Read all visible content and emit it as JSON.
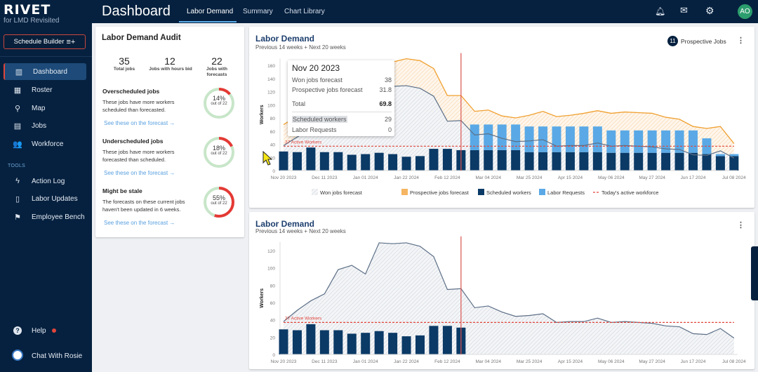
{
  "app": {
    "name": "RIVET",
    "subtitle": "for LMD Revisited",
    "schedule_builder": "Schedule Builder"
  },
  "sidebar": {
    "items": [
      {
        "label": "Dashboard",
        "icon": "bar-chart-icon",
        "active": true
      },
      {
        "label": "Roster",
        "icon": "table-icon"
      },
      {
        "label": "Map",
        "icon": "map-pin-icon"
      },
      {
        "label": "Jobs",
        "icon": "building-icon"
      },
      {
        "label": "Workforce",
        "icon": "people-icon"
      }
    ],
    "tools_label": "TOOLS",
    "tools": [
      {
        "label": "Action Log",
        "icon": "bolt-icon"
      },
      {
        "label": "Labor Updates",
        "icon": "walkie-talkie-icon"
      },
      {
        "label": "Employee Bench",
        "icon": "flag-icon"
      }
    ],
    "help": "Help",
    "chat": "Chat With Rosie"
  },
  "header": {
    "title": "Dashboard",
    "tabs": [
      {
        "label": "Labor Demand",
        "active": true
      },
      {
        "label": "Summary"
      },
      {
        "label": "Chart Library"
      }
    ],
    "avatar": "AO"
  },
  "audit": {
    "title": "Labor Demand Audit",
    "stats": [
      {
        "value": "35",
        "label": "Total jobs"
      },
      {
        "value": "12",
        "label": "Jobs with hours bid"
      },
      {
        "value": "22",
        "label": "Jobs with forecasts"
      }
    ],
    "sections": [
      {
        "title": "Overscheduled jobs",
        "desc": "These jobs have more workers scheduled than forecasted.",
        "link": "See these on the forecast →",
        "percent": 14,
        "percent_label": "14%",
        "out_of": "out of 22"
      },
      {
        "title": "Underscheduled jobs",
        "desc": "These jobs have more workers forecasted than scheduled.",
        "link": "See these on the forecast →",
        "percent": 18,
        "percent_label": "18%",
        "out_of": "out of 22"
      },
      {
        "title": "Might be stale",
        "desc": "The forecasts on these current jobs haven't been updated in 6 weeks.",
        "link": "See these on the forecast →",
        "percent": 55,
        "percent_label": "55%",
        "out_of": "out of 22"
      }
    ]
  },
  "colors": {
    "scheduled": "#0b3a66",
    "requests": "#5aa9e6",
    "won": "#5c6f87",
    "prospective": "#f0a030",
    "active": "#e0453a",
    "today": "#d9534f"
  },
  "tooltip": {
    "date": "Nov 20 2023",
    "rows": [
      {
        "label": "Won jobs forecast",
        "value": "38"
      },
      {
        "label": "Prospective jobs forecast",
        "value": "31.8"
      },
      {
        "label": "Total",
        "value": "69.8"
      },
      {
        "label": "Scheduled workers",
        "value": "29"
      },
      {
        "label": "Labor Requests",
        "value": "0"
      }
    ]
  },
  "chart1_header": {
    "title": "Labor Demand",
    "subtitle": "Previous 14 weeks + Next 20 weeks",
    "prospective_count": "11",
    "prospective_label": "Prospective Jobs"
  },
  "chart2_header": {
    "title": "Labor Demand",
    "subtitle": "Previous 14 weeks + Next 20 weeks"
  },
  "chart_data": [
    {
      "type": "bar",
      "ylabel": "Workers",
      "ylim": [
        0,
        170
      ],
      "yticks": [
        0,
        20,
        40,
        60,
        80,
        100,
        120,
        140,
        160
      ],
      "xticks": [
        "Nov 20 2023",
        "Dec 11 2023",
        "Jan 01 2024",
        "Jan 22 2024",
        "Feb 12 2024",
        "Mar 04 2024",
        "Mar 25 2024",
        "Apr 15 2024",
        "May 06 2024",
        "May 27 2024",
        "Jun 17 2024",
        "Jul 08 2024"
      ],
      "xtick_every_weeks": 3,
      "today_index": 13,
      "active_workforce": 37,
      "active_label": "37 Active Workers",
      "legend": [
        "Won jobs forecast",
        "Prospective jobs forecast",
        "Scheduled workers",
        "Labor Requests",
        "Today's active workforce"
      ],
      "legend_position": "bottom",
      "series": [
        {
          "name": "Won jobs forecast",
          "type": "area",
          "values": [
            38,
            51,
            62,
            70,
            98,
            103,
            93,
            129,
            128,
            129,
            125,
            113,
            75,
            76,
            54,
            56,
            49,
            44,
            45,
            47,
            37,
            38,
            38,
            42,
            37,
            38,
            37,
            36,
            33,
            32,
            24,
            23,
            30,
            19
          ]
        },
        {
          "name": "Prospective jobs forecast",
          "type": "stacked-area",
          "values": [
            31.8,
            32,
            36,
            37,
            39,
            36,
            33,
            35,
            37,
            41,
            42,
            42,
            39,
            38,
            36,
            36,
            34,
            36,
            39,
            43,
            45,
            46,
            49,
            49,
            50,
            51,
            51,
            51,
            48,
            46,
            43,
            41,
            37,
            22
          ]
        },
        {
          "name": "Scheduled workers",
          "type": "bar",
          "values": [
            29,
            28,
            35,
            28,
            28,
            24,
            25,
            27,
            25,
            21,
            22,
            33,
            33,
            31,
            31,
            31,
            31,
            31,
            28,
            28,
            28,
            28,
            28,
            28,
            27,
            27,
            27,
            27,
            27,
            27,
            27,
            25,
            22,
            22
          ]
        },
        {
          "name": "Labor Requests",
          "type": "stacked-bar",
          "values": [
            0,
            0,
            0,
            0,
            0,
            0,
            0,
            0,
            0,
            0,
            0,
            0,
            0,
            0,
            39,
            39,
            39,
            39,
            39,
            39,
            39,
            39,
            39,
            39,
            34,
            34,
            34,
            34,
            34,
            34,
            34,
            24,
            3,
            3
          ]
        }
      ]
    },
    {
      "type": "bar",
      "ylabel": "Workers",
      "ylim": [
        0,
        130
      ],
      "yticks": [
        0,
        20,
        40,
        60,
        80,
        100,
        120
      ],
      "xticks": [
        "Nov 20 2023",
        "Dec 11 2023",
        "Jan 01 2024",
        "Jan 22 2024",
        "Feb 12 2024",
        "Mar 04 2024",
        "Mar 25 2024",
        "Apr 15 2024",
        "May 06 2024",
        "May 27 2024",
        "Jun 17 2024",
        "Jul 08 2024"
      ],
      "xtick_every_weeks": 3,
      "today_index": 13,
      "active_workforce": 37,
      "active_label": "37 Active Workers",
      "series": [
        {
          "name": "Won jobs forecast",
          "type": "area",
          "values": [
            38,
            51,
            62,
            70,
            98,
            103,
            93,
            129,
            128,
            129,
            125,
            113,
            75,
            76,
            54,
            56,
            49,
            44,
            45,
            47,
            37,
            38,
            38,
            42,
            37,
            38,
            37,
            36,
            33,
            32,
            24,
            23,
            30,
            19
          ]
        },
        {
          "name": "Scheduled workers",
          "type": "bar",
          "values": [
            29,
            28,
            35,
            28,
            28,
            24,
            25,
            27,
            25,
            21,
            22,
            33,
            33,
            31
          ]
        }
      ]
    }
  ]
}
